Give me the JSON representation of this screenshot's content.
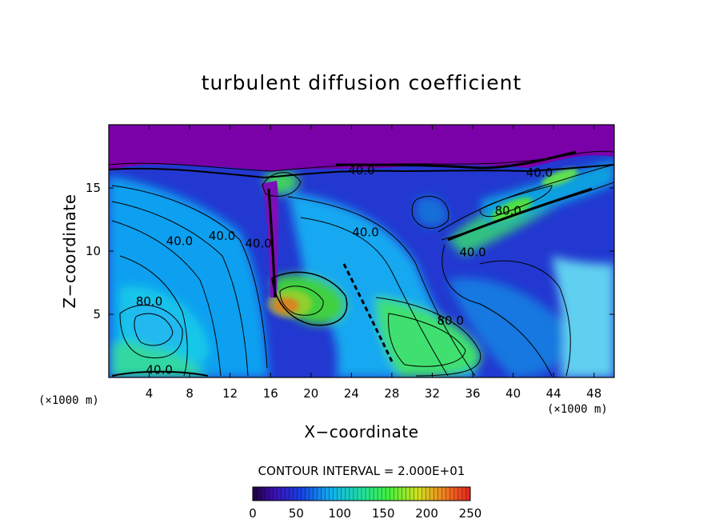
{
  "chart_data": {
    "type": "heatmap",
    "title": "turbulent diffusion coefficient",
    "xlabel": "X−coordinate",
    "ylabel": "Z−coordinate",
    "x_unit": "(×1000 m)",
    "z_unit": "(×1000 m)",
    "xlim": [
      0,
      50
    ],
    "ylim": [
      0,
      20
    ],
    "x_ticks": [
      4,
      8,
      12,
      16,
      20,
      24,
      28,
      32,
      36,
      40,
      44,
      48
    ],
    "y_ticks": [
      5,
      10,
      15
    ],
    "contour_interval_text": "CONTOUR INTERVAL = 2.000E+01",
    "contour_labels": [
      {
        "text": "80.0",
        "x": 4.0,
        "y": 6.0
      },
      {
        "text": "40.0",
        "x": 7.0,
        "y": 10.8
      },
      {
        "text": "40.0",
        "x": 11.2,
        "y": 11.2
      },
      {
        "text": "40.0",
        "x": 14.8,
        "y": 10.6
      },
      {
        "text": "40.0",
        "x": 25.4,
        "y": 11.5
      },
      {
        "text": "80.0",
        "x": 33.8,
        "y": 4.5
      },
      {
        "text": "40.0",
        "x": 36.0,
        "y": 9.9
      },
      {
        "text": "80.0",
        "x": 39.5,
        "y": 13.2
      },
      {
        "text": "40.0",
        "x": 42.6,
        "y": 16.2
      },
      {
        "text": "40.0",
        "x": 5.0,
        "y": 0.6
      },
      {
        "text": "40.0",
        "x": 25.0,
        "y": 16.4
      }
    ],
    "colorbar": {
      "min": 0,
      "max": 250,
      "ticks": [
        0,
        50,
        100,
        150,
        200,
        250
      ]
    }
  },
  "colors": {
    "background": "#7a00a8",
    "field_low": "#2430c8",
    "field_mid": "#10a0f0",
    "field_high": "#30e060",
    "field_peak": "#e02020",
    "contour": "#000000"
  }
}
